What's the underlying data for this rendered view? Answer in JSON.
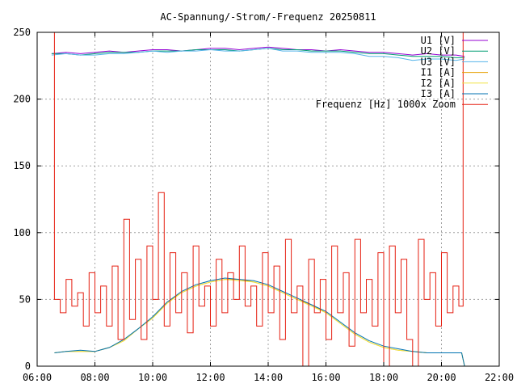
{
  "chart_data": {
    "type": "line",
    "title": "AC-Spannung/-Strom/-Frequenz 20250811",
    "xlabel": "",
    "ylabel": "",
    "xlim": [
      6,
      22
    ],
    "ylim": [
      0,
      250
    ],
    "x_ticks": [
      6,
      8,
      10,
      12,
      14,
      16,
      18,
      20,
      22
    ],
    "x_tick_labels": [
      "06:00",
      "08:00",
      "10:00",
      "12:00",
      "14:00",
      "16:00",
      "18:00",
      "20:00",
      "22:00"
    ],
    "y_ticks": [
      0,
      50,
      100,
      150,
      200,
      250
    ],
    "y_tick_labels": [
      "0",
      "50",
      "100",
      "150",
      "200",
      "250"
    ],
    "grid": true,
    "legend_position": "top-right",
    "series": [
      {
        "name": "U1 [V]",
        "color": "#9400d3",
        "x": [
          6.5,
          7.0,
          7.5,
          8.0,
          8.5,
          9.0,
          9.5,
          10.0,
          10.5,
          11.0,
          11.5,
          12.0,
          12.5,
          13.0,
          13.5,
          14.0,
          14.5,
          15.0,
          15.5,
          16.0,
          16.5,
          17.0,
          17.5,
          18.0,
          18.5,
          19.0,
          19.5,
          20.0,
          20.5,
          20.8
        ],
        "y": [
          234,
          235,
          234,
          235,
          236,
          235,
          236,
          237,
          237,
          236,
          237,
          238,
          238,
          237,
          238,
          239,
          238,
          237,
          237,
          236,
          237,
          236,
          235,
          235,
          234,
          233,
          234,
          233,
          233,
          232
        ]
      },
      {
        "name": "U2 [V]",
        "color": "#009e73",
        "x": [
          6.5,
          7.0,
          7.5,
          8.0,
          8.5,
          9.0,
          9.5,
          10.0,
          10.5,
          11.0,
          11.5,
          12.0,
          12.5,
          13.0,
          13.5,
          14.0,
          14.5,
          15.0,
          15.5,
          16.0,
          16.5,
          17.0,
          17.5,
          18.0,
          18.5,
          19.0,
          19.5,
          20.0,
          20.5,
          20.8
        ],
        "y": [
          234,
          234,
          233,
          234,
          235,
          235,
          235,
          236,
          236,
          236,
          237,
          237,
          237,
          236,
          237,
          238,
          237,
          237,
          236,
          236,
          236,
          235,
          234,
          234,
          233,
          232,
          232,
          232,
          231,
          231
        ]
      },
      {
        "name": "U3 [V]",
        "color": "#56b4e9",
        "x": [
          6.5,
          7.0,
          7.5,
          8.0,
          8.5,
          9.0,
          9.5,
          10.0,
          10.5,
          11.0,
          11.5,
          12.0,
          12.5,
          13.0,
          13.5,
          14.0,
          14.5,
          15.0,
          15.5,
          16.0,
          16.5,
          17.0,
          17.5,
          18.0,
          18.5,
          19.0,
          19.5,
          20.0,
          20.5,
          20.8
        ],
        "y": [
          233,
          234,
          233,
          233,
          234,
          234,
          235,
          236,
          235,
          236,
          236,
          237,
          236,
          236,
          237,
          238,
          236,
          236,
          235,
          235,
          235,
          234,
          232,
          232,
          231,
          229,
          230,
          230,
          229,
          230
        ]
      },
      {
        "name": "I1 [A]",
        "color": "#e69f00",
        "x": [
          6.6,
          7.0,
          7.5,
          8.0,
          8.5,
          9.0,
          9.5,
          10.0,
          10.5,
          11.0,
          11.5,
          12.0,
          12.5,
          13.0,
          13.5,
          14.0,
          14.5,
          15.0,
          15.5,
          16.0,
          16.5,
          17.0,
          17.5,
          18.0,
          18.5,
          19.0,
          19.5,
          20.0,
          20.5,
          20.7,
          20.8
        ],
        "y": [
          10,
          11,
          11,
          11,
          14,
          19,
          28,
          36,
          48,
          55,
          60,
          63,
          65,
          65,
          63,
          60,
          55,
          50,
          46,
          40,
          32,
          24,
          18,
          14,
          12,
          11,
          10,
          10,
          10,
          10,
          0
        ]
      },
      {
        "name": "I2 [A]",
        "color": "#f0e442",
        "x": [
          6.6,
          7.0,
          7.5,
          8.0,
          8.5,
          9.0,
          9.5,
          10.0,
          10.5,
          11.0,
          11.5,
          12.0,
          12.5,
          13.0,
          13.5,
          14.0,
          14.5,
          15.0,
          15.5,
          16.0,
          16.5,
          17.0,
          17.5,
          18.0,
          18.5,
          19.0,
          19.5,
          20.0,
          20.5,
          20.7,
          20.8
        ],
        "y": [
          10,
          11,
          11,
          11,
          14,
          19,
          28,
          36,
          47,
          55,
          60,
          63,
          65,
          64,
          63,
          60,
          55,
          50,
          45,
          40,
          32,
          24,
          18,
          14,
          12,
          11,
          10,
          10,
          10,
          10,
          0
        ]
      },
      {
        "name": "I3 [A]",
        "color": "#0072b2",
        "x": [
          6.6,
          7.0,
          7.5,
          8.0,
          8.5,
          9.0,
          9.5,
          10.0,
          10.5,
          11.0,
          11.5,
          12.0,
          12.5,
          13.0,
          13.5,
          14.0,
          14.5,
          15.0,
          15.5,
          16.0,
          16.5,
          17.0,
          17.5,
          18.0,
          18.5,
          19.0,
          19.5,
          20.0,
          20.5,
          20.7,
          20.8
        ],
        "y": [
          10,
          11,
          12,
          11,
          14,
          20,
          28,
          37,
          48,
          56,
          61,
          64,
          66,
          65,
          64,
          61,
          56,
          51,
          46,
          41,
          33,
          25,
          19,
          15,
          13,
          11,
          10,
          10,
          10,
          10,
          0
        ]
      },
      {
        "name": "Frequenz [Hz] 1000x Zoom",
        "color": "#e51e10",
        "x": [
          6.55,
          6.6,
          6.8,
          7.0,
          7.2,
          7.4,
          7.6,
          7.8,
          8.0,
          8.2,
          8.4,
          8.6,
          8.8,
          9.0,
          9.2,
          9.4,
          9.6,
          9.8,
          10.0,
          10.2,
          10.4,
          10.6,
          10.8,
          11.0,
          11.2,
          11.4,
          11.6,
          11.8,
          12.0,
          12.2,
          12.4,
          12.6,
          12.8,
          13.0,
          13.2,
          13.4,
          13.6,
          13.8,
          14.0,
          14.2,
          14.4,
          14.6,
          14.8,
          15.0,
          15.2,
          15.4,
          15.6,
          15.8,
          16.0,
          16.2,
          16.4,
          16.6,
          16.8,
          17.0,
          17.2,
          17.4,
          17.6,
          17.8,
          18.0,
          18.2,
          18.4,
          18.6,
          18.8,
          19.0,
          19.2,
          19.4,
          19.6,
          19.8,
          20.0,
          20.2,
          20.4,
          20.6,
          20.75
        ],
        "y": [
          250,
          50,
          40,
          65,
          45,
          55,
          30,
          70,
          40,
          60,
          30,
          75,
          20,
          110,
          35,
          80,
          20,
          90,
          50,
          130,
          30,
          85,
          40,
          70,
          25,
          90,
          45,
          60,
          30,
          80,
          40,
          70,
          50,
          90,
          45,
          60,
          30,
          85,
          40,
          75,
          20,
          95,
          40,
          60,
          0,
          80,
          40,
          65,
          20,
          90,
          40,
          70,
          15,
          95,
          40,
          65,
          30,
          85,
          0,
          90,
          40,
          80,
          20,
          0,
          95,
          50,
          70,
          30,
          85,
          40,
          60,
          45,
          250
        ]
      }
    ]
  }
}
